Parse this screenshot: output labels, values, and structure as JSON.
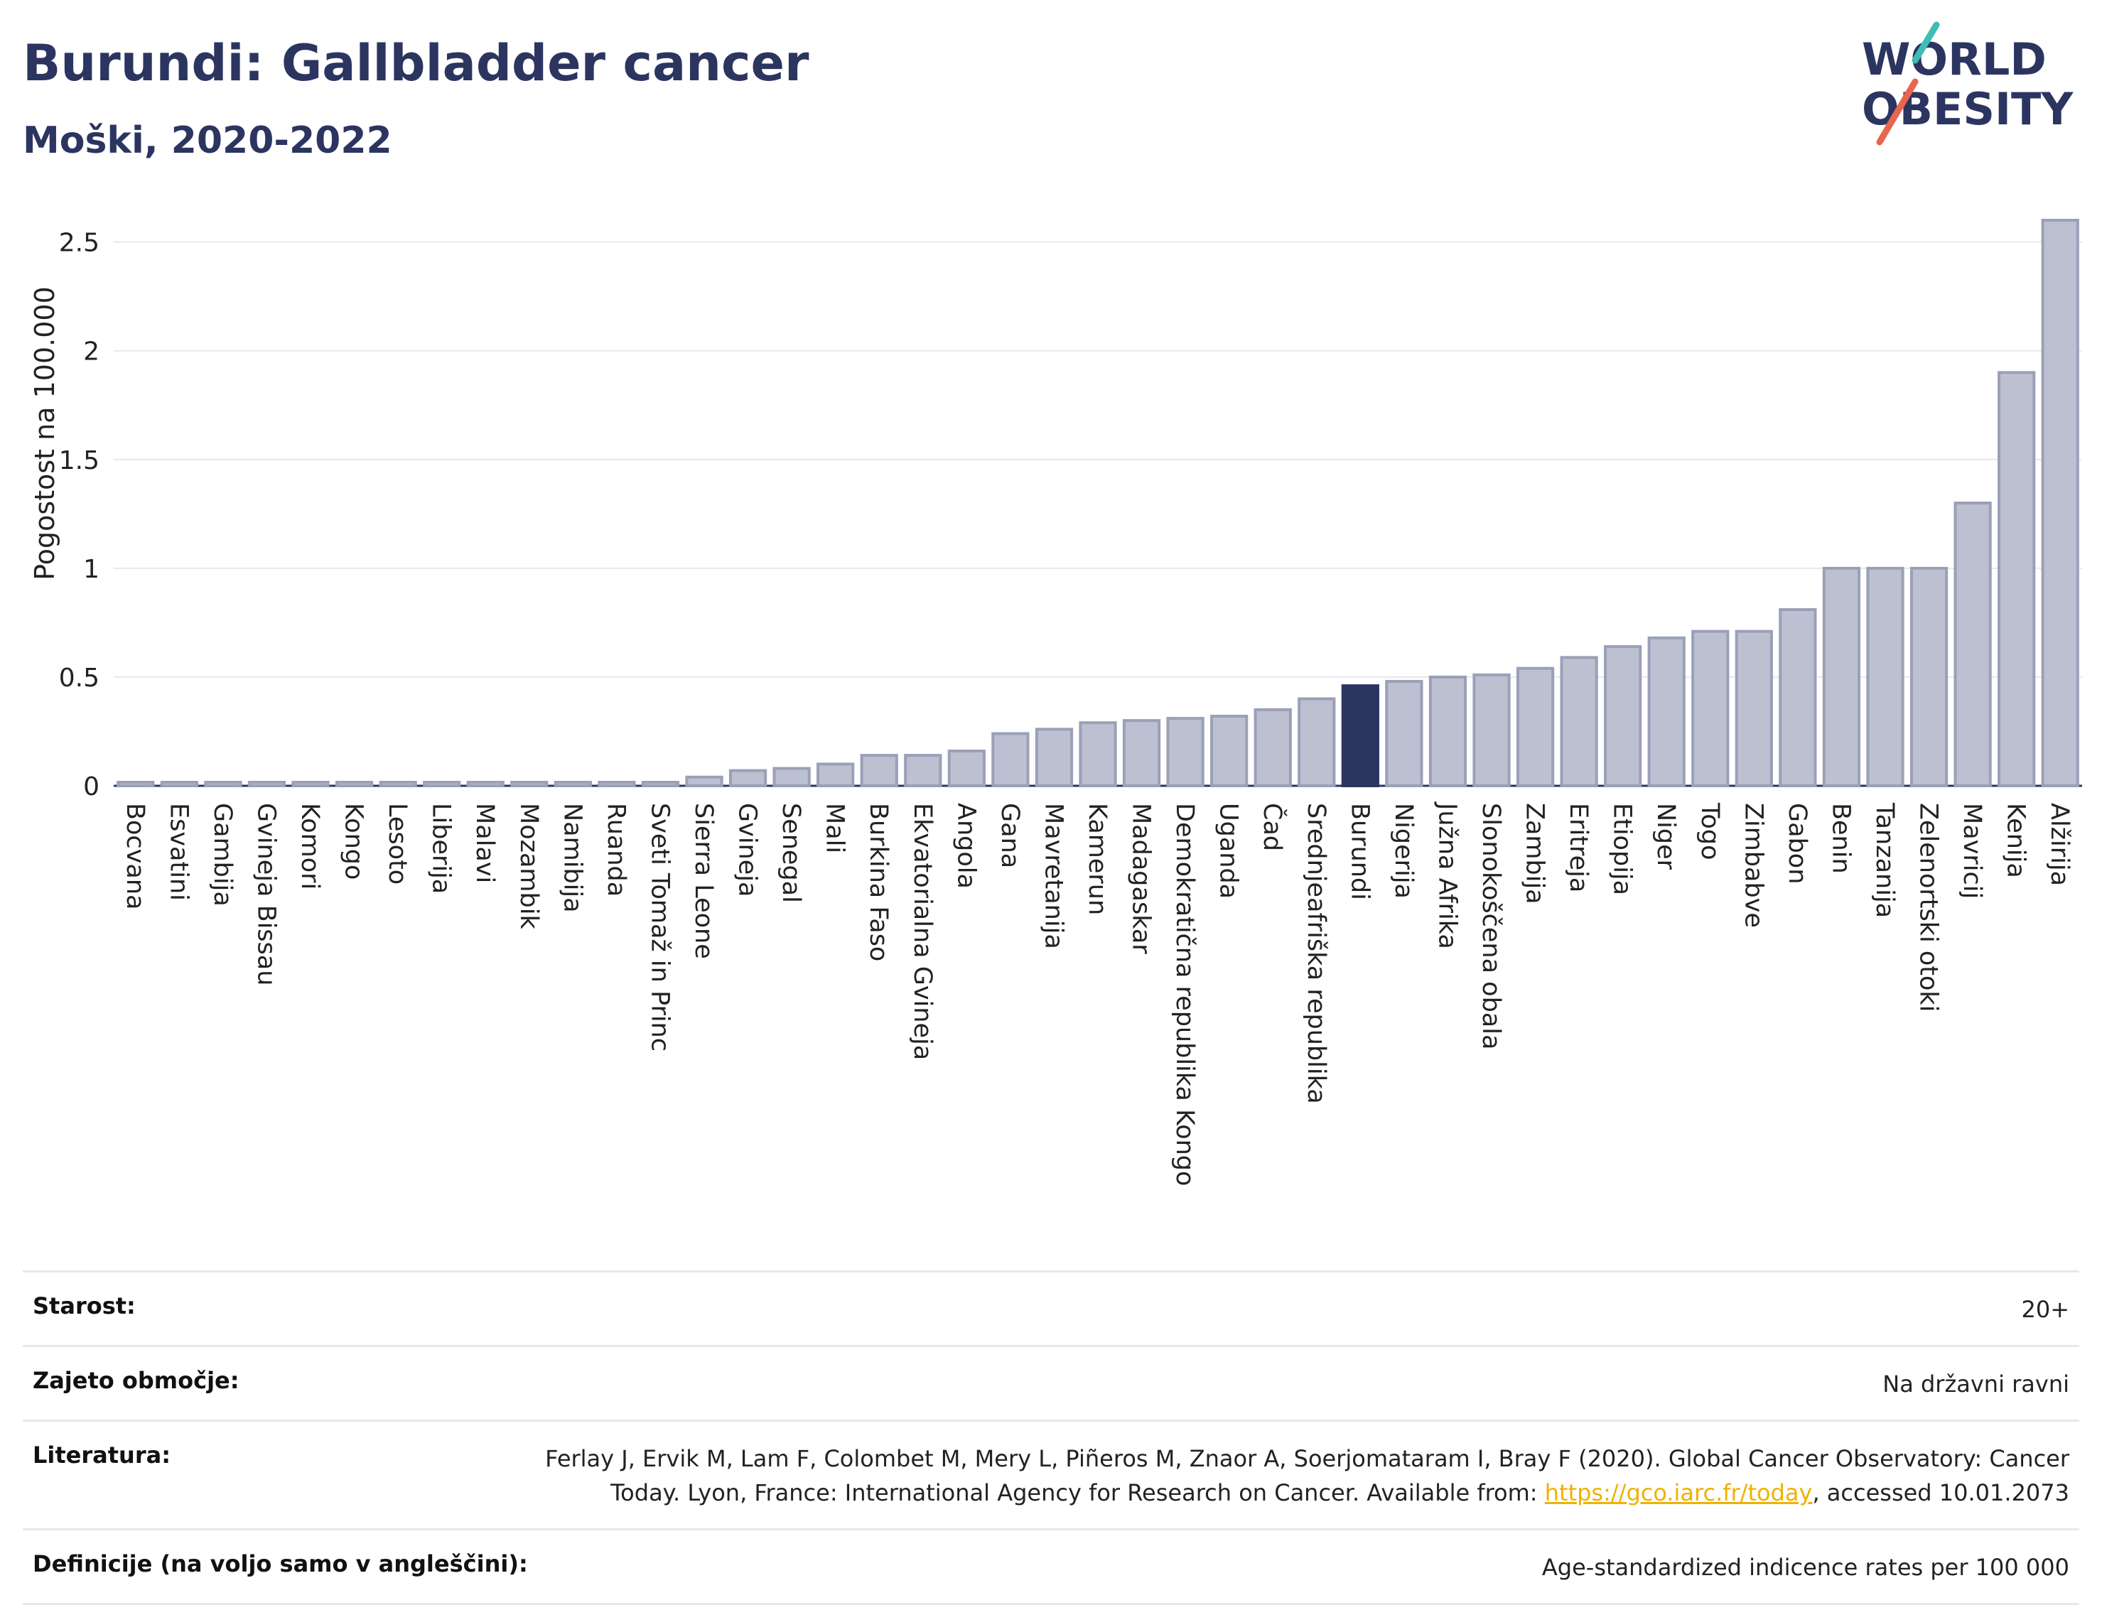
{
  "header": {
    "title": "Burundi: Gallbladder cancer",
    "subtitle": "Moški, 2020-2022"
  },
  "logo": {
    "line1": "WORLD",
    "line2": "OBESITY",
    "colors": {
      "text": "#2b3560",
      "slash_teal": "#3dbdb4",
      "slash_red": "#e8654f"
    }
  },
  "chart_data": {
    "type": "bar",
    "ylabel": "Pogostost na 100.000",
    "xlabel": "",
    "ylim": [
      0,
      2.6
    ],
    "yticks": [
      0,
      0.5,
      1,
      1.5,
      2,
      2.5
    ],
    "ytick_labels": [
      "0",
      "0.5",
      "1",
      "1.5",
      "2",
      "2.5"
    ],
    "grid": true,
    "highlight": "Burundi",
    "colors": {
      "bar": "#bcc0d0",
      "bar_edge": "#9aa0b8",
      "highlight": "#2b3560"
    },
    "categories": [
      "Bocvana",
      "Esvatini",
      "Gambija",
      "Gvineja Bissau",
      "Komori",
      "Kongo",
      "Lesoto",
      "Liberija",
      "Malavi",
      "Mozambik",
      "Namibija",
      "Ruanda",
      "Sveti Tomaž in Princ",
      "Sierra Leone",
      "Gvineja",
      "Senegal",
      "Mali",
      "Burkina Faso",
      "Ekvatorialna Gvineja",
      "Angola",
      "Gana",
      "Mavretanija",
      "Kamerun",
      "Madagaskar",
      "Demokratična republika Kongo",
      "Uganda",
      "Čad",
      "Srednjeafriška republika",
      "Burundi",
      "Nigerija",
      "Južna Afrika",
      "Slonokoščena obala",
      "Zambija",
      "Eritreja",
      "Etiopija",
      "Niger",
      "Togo",
      "Zimbabve",
      "Gabon",
      "Benin",
      "Tanzanija",
      "Zelenortski otoki",
      "Mavricij",
      "Kenija",
      "Alžirija"
    ],
    "values": [
      0.01,
      0.01,
      0.01,
      0.01,
      0.01,
      0.01,
      0.01,
      0.01,
      0.01,
      0.01,
      0.01,
      0.01,
      0.01,
      0.04,
      0.07,
      0.08,
      0.1,
      0.14,
      0.14,
      0.16,
      0.24,
      0.26,
      0.29,
      0.3,
      0.31,
      0.32,
      0.35,
      0.4,
      0.46,
      0.48,
      0.5,
      0.51,
      0.54,
      0.59,
      0.64,
      0.68,
      0.71,
      0.71,
      0.81,
      1.0,
      1.0,
      1.0,
      1.3,
      1.9,
      2.6
    ]
  },
  "meta": [
    {
      "label": "Starost:",
      "value": "20+"
    },
    {
      "label": "Zajeto območje:",
      "value": "Na državni ravni"
    },
    {
      "label": "Literatura:",
      "value_before": "Ferlay J, Ervik M, Lam F, Colombet M, Mery L, Piñeros M, Znaor A, Soerjomataram I, Bray F (2020). Global Cancer Observatory: Cancer Today. Lyon, France: International Agency for Research on Cancer. Available from: ",
      "link": "https://gco.iarc.fr/today",
      "value_after": ", accessed 10.01.2073"
    },
    {
      "label": "Definicije (na voljo samo v angleščini):",
      "value": "Age-standardized indicence rates per 100 000"
    }
  ]
}
